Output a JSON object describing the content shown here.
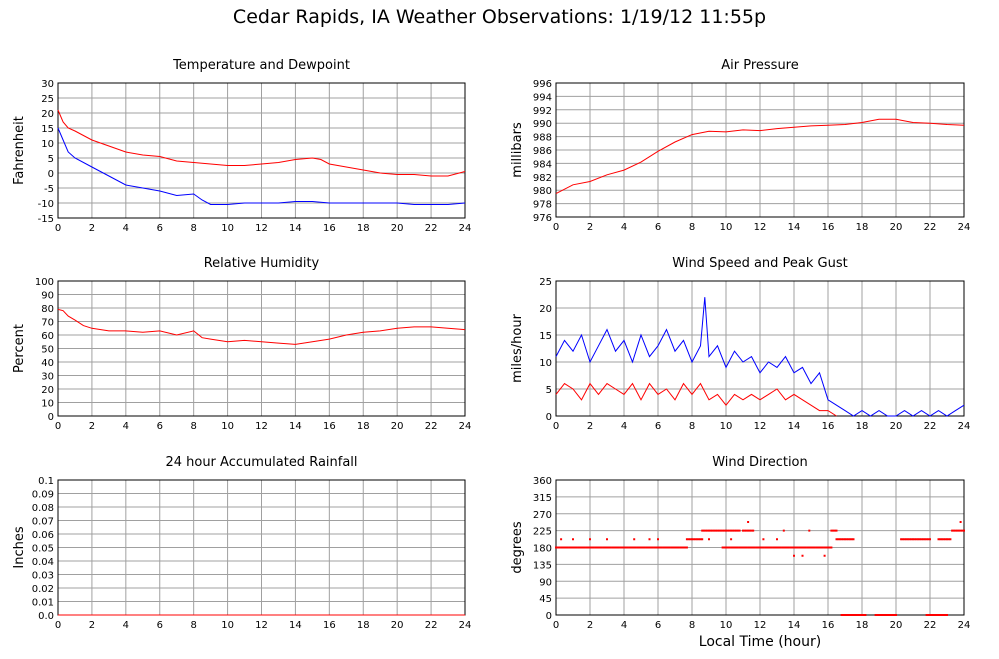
{
  "page": {
    "title": "Cedar Rapids, IA Weather Observations: 1/19/12 11:55p",
    "xlabel": "Local Time (hour)"
  },
  "colors": {
    "red": "#ff0000",
    "blue": "#0000ff",
    "grid": "#a0a0a0"
  },
  "chart_data": [
    {
      "id": "temp",
      "type": "line",
      "title": "Temperature and Dewpoint",
      "xlabel": "",
      "ylabel": "Fahrenheit",
      "ylim": [
        -15,
        30
      ],
      "yticks": [
        30,
        25,
        20,
        15,
        10,
        5,
        0,
        -5,
        -10,
        -15
      ],
      "xlim": [
        0,
        24
      ],
      "xticks": [
        0,
        2,
        4,
        6,
        8,
        10,
        12,
        14,
        16,
        18,
        20,
        22,
        24
      ],
      "grid": true,
      "series": [
        {
          "color": "#ff0000",
          "x": [
            0,
            0.3,
            0.6,
            1,
            2,
            3,
            4,
            5,
            6,
            7,
            8,
            9,
            10,
            11,
            12,
            13,
            14,
            15,
            15.5,
            16,
            17,
            18,
            19,
            20,
            21,
            22,
            23,
            24
          ],
          "y": [
            21,
            17,
            15,
            14,
            11,
            9,
            7,
            6,
            5.5,
            4,
            3.5,
            3,
            2.5,
            2.5,
            3,
            3.5,
            4.5,
            5,
            4.5,
            3,
            2,
            1,
            0,
            -0.5,
            -0.5,
            -1,
            -1,
            0.5
          ]
        },
        {
          "color": "#0000ff",
          "x": [
            0,
            0.3,
            0.6,
            1,
            2,
            3,
            4,
            5,
            6,
            7,
            8,
            8.5,
            9,
            10,
            11,
            12,
            13,
            14,
            15,
            16,
            17,
            18,
            19,
            20,
            21,
            22,
            23,
            24
          ],
          "y": [
            15,
            11,
            7,
            5,
            2,
            -1,
            -4,
            -5,
            -6,
            -7.5,
            -7,
            -9,
            -10.5,
            -10.5,
            -10,
            -10,
            -10,
            -9.5,
            -9.5,
            -10,
            -10,
            -10,
            -10,
            -10,
            -10.5,
            -10.5,
            -10.5,
            -10
          ]
        }
      ]
    },
    {
      "id": "pressure",
      "type": "line",
      "title": "Air Pressure",
      "xlabel": "",
      "ylabel": "millibars",
      "ylim": [
        976,
        996
      ],
      "yticks": [
        996,
        994,
        992,
        990,
        988,
        986,
        984,
        982,
        980,
        978,
        976
      ],
      "xlim": [
        0,
        24
      ],
      "xticks": [
        0,
        2,
        4,
        6,
        8,
        10,
        12,
        14,
        16,
        18,
        20,
        22,
        24
      ],
      "grid": true,
      "series": [
        {
          "color": "#ff0000",
          "x": [
            0,
            1,
            2,
            3,
            4,
            5,
            6,
            7,
            8,
            9,
            10,
            11,
            12,
            13,
            14,
            15,
            16,
            17,
            18,
            19,
            20,
            21,
            22,
            23,
            24
          ],
          "y": [
            979.5,
            980.8,
            981.3,
            982.3,
            983.0,
            984.2,
            985.8,
            987.2,
            988.3,
            988.8,
            988.7,
            989.0,
            988.9,
            989.2,
            989.4,
            989.6,
            989.7,
            989.8,
            990.1,
            990.6,
            990.6,
            990.1,
            990.0,
            989.8,
            989.7
          ]
        }
      ]
    },
    {
      "id": "humidity",
      "type": "line",
      "title": "Relative Humidity",
      "xlabel": "",
      "ylabel": "Percent",
      "ylim": [
        0,
        100
      ],
      "yticks": [
        100,
        90,
        80,
        70,
        60,
        50,
        40,
        30,
        20,
        10,
        0
      ],
      "xlim": [
        0,
        24
      ],
      "xticks": [
        0,
        2,
        4,
        6,
        8,
        10,
        12,
        14,
        16,
        18,
        20,
        22,
        24
      ],
      "grid": true,
      "series": [
        {
          "color": "#ff0000",
          "x": [
            0,
            0.3,
            0.6,
            1,
            1.5,
            2,
            3,
            4,
            5,
            6,
            7,
            8,
            8.5,
            9,
            10,
            11,
            12,
            13,
            14,
            15,
            16,
            17,
            18,
            19,
            20,
            21,
            22,
            23,
            24
          ],
          "y": [
            79,
            78,
            74,
            71,
            67,
            65,
            63,
            63,
            62,
            63,
            60,
            63,
            58,
            57,
            55,
            56,
            55,
            54,
            53,
            55,
            57,
            60,
            62,
            63,
            65,
            66,
            66,
            65,
            64
          ]
        }
      ]
    },
    {
      "id": "wind",
      "type": "line",
      "title": "Wind Speed and Peak Gust",
      "xlabel": "",
      "ylabel": "miles/hour",
      "ylim": [
        0,
        25
      ],
      "yticks": [
        25,
        20,
        15,
        10,
        5,
        0
      ],
      "xlim": [
        0,
        24
      ],
      "xticks": [
        0,
        2,
        4,
        6,
        8,
        10,
        12,
        14,
        16,
        18,
        20,
        22,
        24
      ],
      "grid": true,
      "series": [
        {
          "color": "#0000ff",
          "x": [
            0,
            0.5,
            1,
            1.5,
            2,
            2.5,
            3,
            3.5,
            4,
            4.5,
            5,
            5.5,
            6,
            6.5,
            7,
            7.5,
            8,
            8.5,
            8.75,
            9,
            9.5,
            10,
            10.5,
            11,
            11.5,
            12,
            12.5,
            13,
            13.5,
            14,
            14.5,
            15,
            15.5,
            16,
            16.5,
            17,
            17.5,
            18,
            18.5,
            19,
            19.5,
            20,
            20.5,
            21,
            21.5,
            22,
            22.5,
            23,
            23.5,
            24
          ],
          "y": [
            11,
            14,
            12,
            15,
            10,
            13,
            16,
            12,
            14,
            10,
            15,
            11,
            13,
            16,
            12,
            14,
            10,
            13,
            22,
            11,
            13,
            9,
            12,
            10,
            11,
            8,
            10,
            9,
            11,
            8,
            9,
            6,
            8,
            3,
            2,
            1,
            0,
            1,
            0,
            1,
            0,
            0,
            1,
            0,
            1,
            0,
            1,
            0,
            1,
            2
          ]
        },
        {
          "color": "#ff0000",
          "x": [
            0,
            0.5,
            1,
            1.5,
            2,
            2.5,
            3,
            3.5,
            4,
            4.5,
            5,
            5.5,
            6,
            6.5,
            7,
            7.5,
            8,
            8.5,
            9,
            9.5,
            10,
            10.5,
            11,
            11.5,
            12,
            12.5,
            13,
            13.5,
            14,
            14.5,
            15,
            15.5,
            16,
            16.5
          ],
          "y": [
            4,
            6,
            5,
            3,
            6,
            4,
            6,
            5,
            4,
            6,
            3,
            6,
            4,
            5,
            3,
            6,
            4,
            6,
            3,
            4,
            2,
            4,
            3,
            4,
            3,
            4,
            5,
            3,
            4,
            3,
            2,
            1,
            1,
            0
          ]
        }
      ]
    },
    {
      "id": "rain",
      "type": "line",
      "title": "24 hour Accumulated Rainfall",
      "xlabel": "",
      "ylabel": "Inches",
      "ylim": [
        0,
        0.1
      ],
      "yticks": [
        "0.1",
        "0.09",
        "0.08",
        "0.07",
        "0.06",
        "0.05",
        "0.04",
        "0.03",
        "0.02",
        "0.01",
        "0.0"
      ],
      "xlim": [
        0,
        24
      ],
      "xticks": [
        0,
        2,
        4,
        6,
        8,
        10,
        12,
        14,
        16,
        18,
        20,
        22,
        24
      ],
      "grid": true,
      "series": [
        {
          "color": "#ff0000",
          "x": [
            0,
            24
          ],
          "y": [
            0,
            0
          ]
        }
      ]
    },
    {
      "id": "winddir",
      "type": "scatter",
      "title": "Wind Direction",
      "xlabel": "Local Time (hour)",
      "ylabel": "degrees",
      "ylim": [
        0,
        360
      ],
      "yticks": [
        360,
        315,
        270,
        225,
        180,
        135,
        90,
        45,
        0
      ],
      "xlim": [
        0,
        24
      ],
      "xticks": [
        0,
        2,
        4,
        6,
        8,
        10,
        12,
        14,
        16,
        18,
        20,
        22,
        24
      ],
      "grid": true,
      "series": [
        {
          "color": "#ff0000",
          "segments": [
            {
              "x0": 0,
              "x1": 7.7,
              "y": 180
            },
            {
              "x0": 7.7,
              "x1": 8.6,
              "y": 202
            },
            {
              "x0": 8.6,
              "x1": 10.8,
              "y": 225
            },
            {
              "x0": 9.8,
              "x1": 12.5,
              "y": 180
            },
            {
              "x0": 11.0,
              "x1": 11.6,
              "y": 225
            },
            {
              "x0": 12.5,
              "x1": 16.2,
              "y": 180
            },
            {
              "x0": 16.2,
              "x1": 16.5,
              "y": 225
            },
            {
              "x0": 16.5,
              "x1": 17.5,
              "y": 202
            },
            {
              "x0": 16.8,
              "x1": 18.2,
              "y": 0
            },
            {
              "x0": 18.8,
              "x1": 20.0,
              "y": 0
            },
            {
              "x0": 20.3,
              "x1": 22.0,
              "y": 202
            },
            {
              "x0": 21.8,
              "x1": 23.0,
              "y": 0
            },
            {
              "x0": 22.5,
              "x1": 23.2,
              "y": 202
            },
            {
              "x0": 23.3,
              "x1": 24.0,
              "y": 225
            }
          ],
          "points": [
            {
              "x": 0.3,
              "y": 202
            },
            {
              "x": 1.0,
              "y": 202
            },
            {
              "x": 2.0,
              "y": 202
            },
            {
              "x": 3.0,
              "y": 202
            },
            {
              "x": 4.6,
              "y": 202
            },
            {
              "x": 5.5,
              "y": 202
            },
            {
              "x": 6.0,
              "y": 202
            },
            {
              "x": 11.3,
              "y": 248
            },
            {
              "x": 12.2,
              "y": 202
            },
            {
              "x": 13.0,
              "y": 202
            },
            {
              "x": 13.4,
              "y": 225
            },
            {
              "x": 14.0,
              "y": 158
            },
            {
              "x": 14.5,
              "y": 158
            },
            {
              "x": 14.9,
              "y": 225
            },
            {
              "x": 15.8,
              "y": 158
            },
            {
              "x": 9.0,
              "y": 202
            },
            {
              "x": 10.3,
              "y": 202
            },
            {
              "x": 23.8,
              "y": 248
            }
          ]
        }
      ]
    }
  ]
}
